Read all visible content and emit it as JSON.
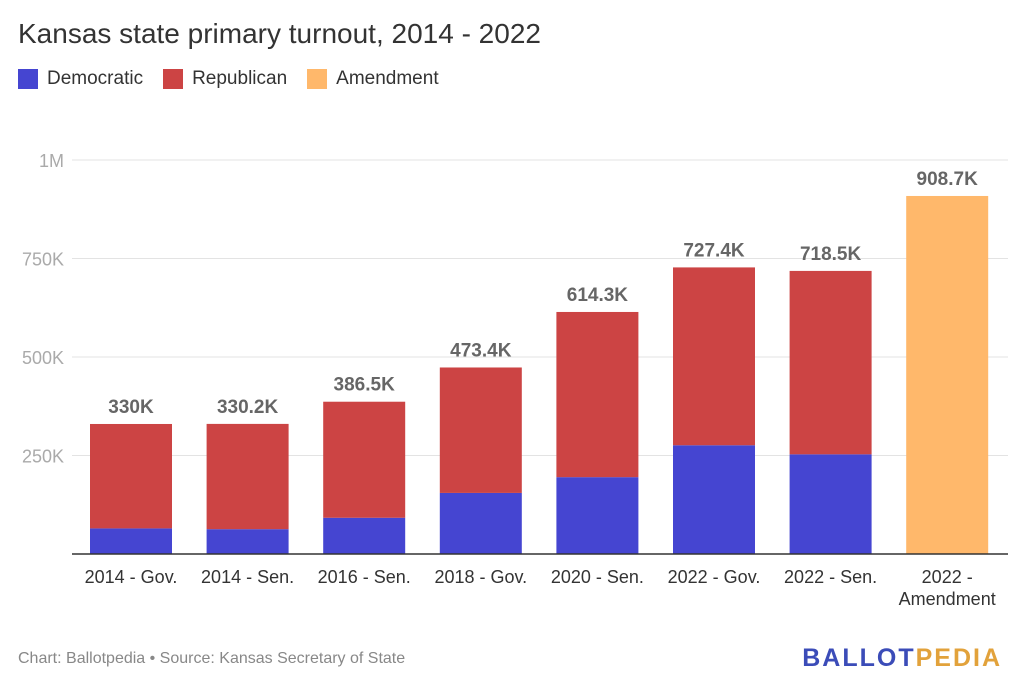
{
  "chart_data": {
    "type": "bar",
    "stacked": true,
    "title": "Kansas state primary turnout, 2014 - 2022",
    "categories": [
      "2014 - Gov.",
      "2014 - Sen.",
      "2016 - Sen.",
      "2018 - Gov.",
      "2020 - Sen.",
      "2022 - Gov.",
      "2022 - Sen.",
      "2022 - Amendment"
    ],
    "category_lines": [
      [
        "2014 - Gov."
      ],
      [
        "2014 - Sen."
      ],
      [
        "2016 - Sen."
      ],
      [
        "2018 - Gov."
      ],
      [
        "2020 - Sen."
      ],
      [
        "2022 - Gov."
      ],
      [
        "2022 - Sen."
      ],
      [
        "2022 -",
        "Amendment"
      ]
    ],
    "series": [
      {
        "name": "Democratic",
        "color": "#4545d1",
        "values": [
          65000,
          63000,
          92000,
          155000,
          195000,
          276000,
          253000,
          0
        ]
      },
      {
        "name": "Republican",
        "color": "#cc4444",
        "values": [
          265000,
          267200,
          294500,
          318400,
          419300,
          451400,
          465500,
          0
        ]
      },
      {
        "name": "Amendment",
        "color": "#ffb86b",
        "values": [
          0,
          0,
          0,
          0,
          0,
          0,
          0,
          908700
        ]
      }
    ],
    "total_labels": [
      "330K",
      "330.2K",
      "386.5K",
      "473.4K",
      "614.3K",
      "727.4K",
      "718.5K",
      "908.7K"
    ],
    "y_ticks": [
      {
        "value": 250000,
        "label": "250K"
      },
      {
        "value": 500000,
        "label": "500K"
      },
      {
        "value": 750000,
        "label": "750K"
      },
      {
        "value": 1000000,
        "label": "1M"
      }
    ],
    "ylim": [
      0,
      1000000
    ],
    "grid": true,
    "legend_position": "top-left"
  },
  "footer": {
    "credit": "Chart: Ballotpedia • Source: Kansas Secretary of State"
  },
  "logo": {
    "part1": "BALLOT",
    "part2": "PEDIA"
  }
}
